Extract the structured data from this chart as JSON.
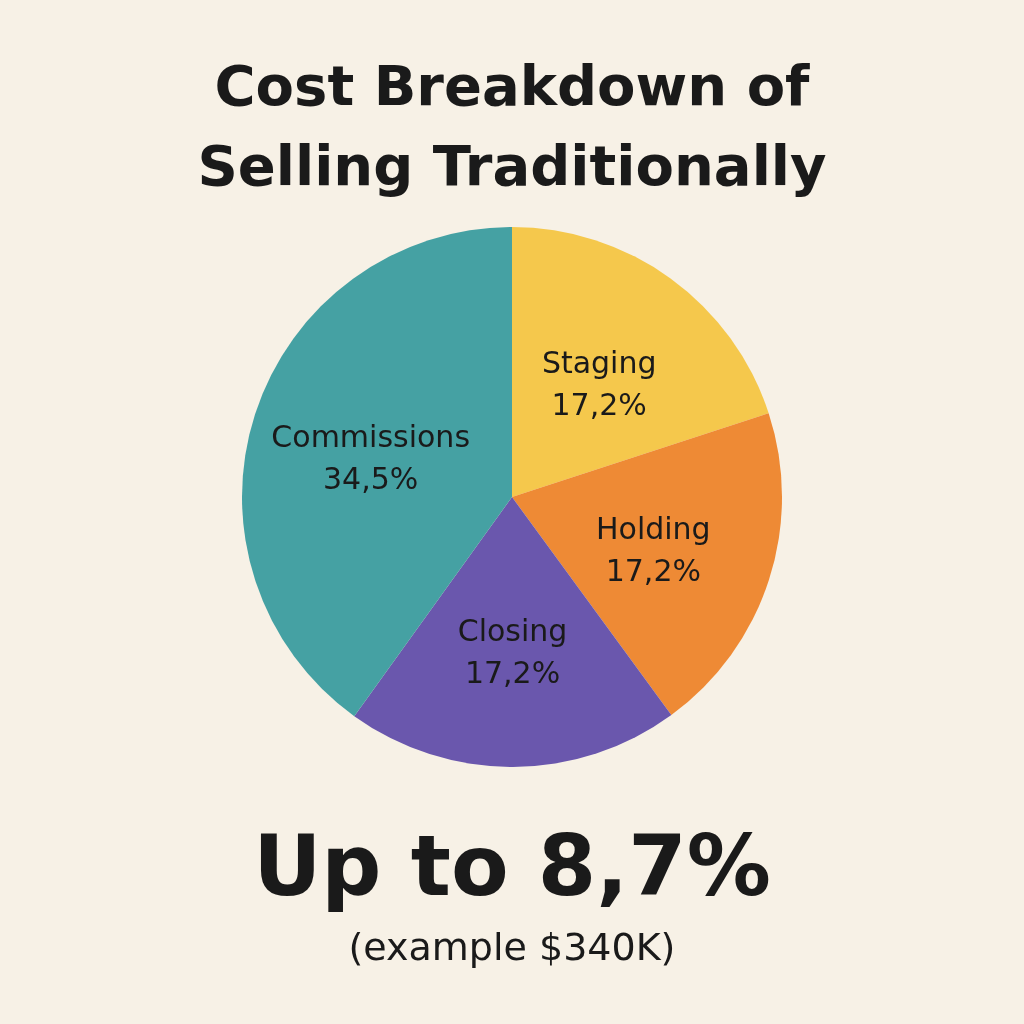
{
  "chart_data": {
    "type": "pie",
    "title": "Cost Breakdown of Selling Traditionally",
    "categories": [
      "Staging",
      "Holding",
      "Closing",
      "Commissions"
    ],
    "values": [
      17.2,
      17.2,
      17.2,
      34.5
    ],
    "value_labels": [
      "17,2%",
      "17,2%",
      "17,2%",
      "34,5%"
    ],
    "colors": [
      "#f5c84c",
      "#ee8a35",
      "#6a57ad",
      "#45a1a3"
    ],
    "annotations": [
      "Up to 8,7%",
      "(example $340K)"
    ]
  }
}
